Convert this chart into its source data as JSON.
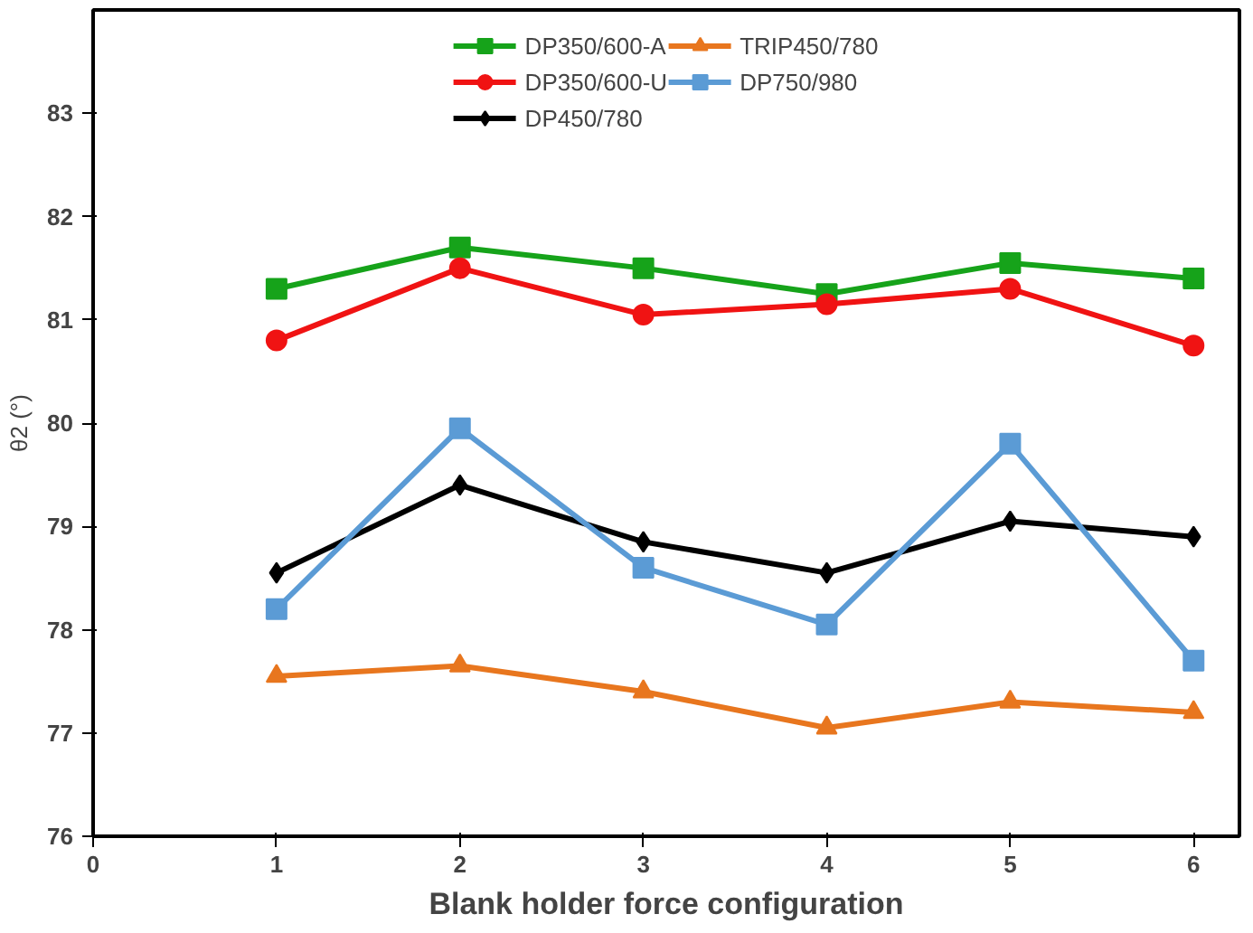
{
  "chart_data": {
    "type": "line",
    "xlabel": "Blank holder force configuration",
    "ylabel": "θ2 (°)",
    "x": [
      1,
      2,
      3,
      4,
      5,
      6
    ],
    "series": [
      {
        "name": "DP350/600-A",
        "color": "#16a31a",
        "marker": "square",
        "values": [
          81.3,
          81.7,
          81.5,
          81.25,
          81.55,
          81.4
        ]
      },
      {
        "name": "DP350/600-U",
        "color": "#f01313",
        "marker": "circle",
        "values": [
          80.8,
          81.5,
          81.05,
          81.15,
          81.3,
          80.75
        ]
      },
      {
        "name": "DP450/780",
        "color": "#000000",
        "marker": "diamond",
        "values": [
          78.55,
          79.4,
          78.85,
          78.55,
          79.05,
          78.9
        ]
      },
      {
        "name": "TRIP450/780",
        "color": "#e8761e",
        "marker": "triangle",
        "values": [
          77.55,
          77.65,
          77.4,
          77.05,
          77.3,
          77.2
        ]
      },
      {
        "name": "DP750/980",
        "color": "#5b9bd5",
        "marker": "square",
        "values": [
          78.2,
          79.95,
          78.6,
          78.05,
          79.8,
          77.7
        ]
      }
    ],
    "xlim": [
      0,
      6.25
    ],
    "xticks": [
      0,
      1,
      2,
      3,
      4,
      5,
      6
    ],
    "ylim": [
      76,
      84
    ],
    "yticks": [
      76,
      77,
      78,
      79,
      80,
      81,
      82,
      83
    ],
    "grid": false,
    "legend": "top",
    "line_style": "solid"
  }
}
